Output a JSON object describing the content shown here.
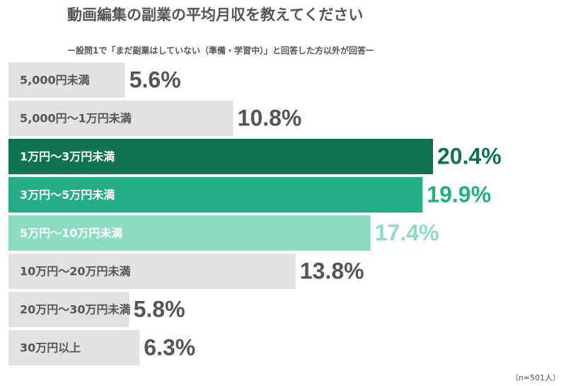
{
  "chart_data": {
    "type": "hbar",
    "title": "動画編集の副業の平均月収を教えてください",
    "subtitle": "ー設問1で「まだ副業はしていない（準備・学習中）」と回答した方以外が回答ー",
    "note": "（n=501人）",
    "categories": [
      "5,000円未満",
      "5,000円〜1万円未満",
      "1万円〜3万円未満",
      "3万円〜5万円未満",
      "5万円〜10万円未満",
      "10万円〜20万円未満",
      "20万円〜30万円未満",
      "30万円以上"
    ],
    "values": [
      5.6,
      10.8,
      20.4,
      19.9,
      17.4,
      13.8,
      5.8,
      6.3
    ],
    "value_labels": [
      "5.6%",
      "10.8%",
      "20.4%",
      "19.9%",
      "17.4%",
      "13.8%",
      "5.8%",
      "6.3%"
    ],
    "colors": [
      "#e2e2e2",
      "#e2e2e2",
      "#0f7252",
      "#25ad84",
      "#8edcc0",
      "#e2e2e2",
      "#e2e2e2",
      "#e2e2e2"
    ],
    "base_color": "#e2e2e2"
  }
}
